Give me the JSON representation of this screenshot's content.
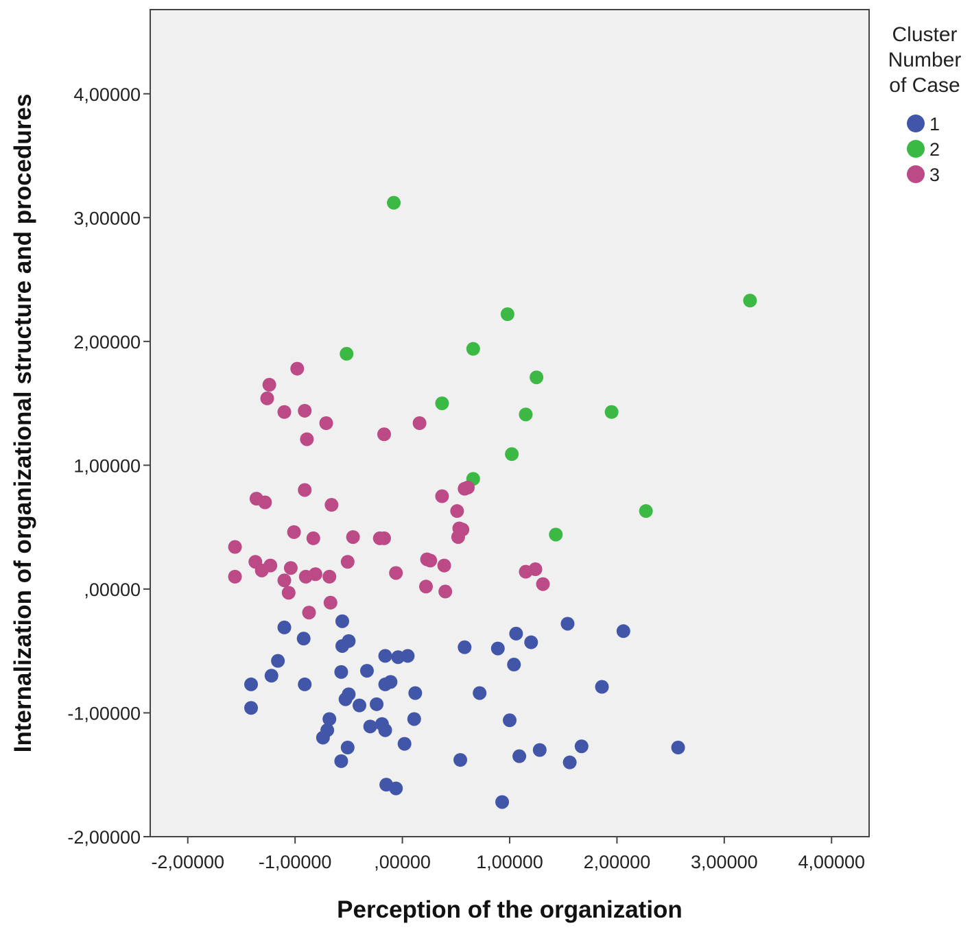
{
  "chart_data": {
    "type": "scatter",
    "xlabel": "Perception of the organization",
    "ylabel": "Internalization of organizational structure and procedures",
    "xlim": [
      -2.35,
      4.35
    ],
    "ylim": [
      -2.0,
      4.68
    ],
    "x_ticks": [
      -2,
      -1,
      0,
      1,
      2,
      3,
      4
    ],
    "y_ticks": [
      -2,
      -1,
      0,
      1,
      2,
      3,
      4
    ],
    "x_tick_labels": [
      "-2,00000",
      "-1,00000",
      ",00000",
      "1,00000",
      "2,00000",
      "3,00000",
      "4,00000"
    ],
    "y_tick_labels": [
      "-2,00000",
      "-1,00000",
      ",00000",
      "1,00000",
      "2,00000",
      "3,00000",
      "4,00000"
    ],
    "grid": false,
    "background_color": "#f0f0f0",
    "legend": {
      "title": "Cluster Number of Case",
      "title_lines": [
        "Cluster",
        "Number",
        "of Case"
      ],
      "placement": "right"
    },
    "series": [
      {
        "name": "1",
        "color": "#4156a8",
        "points": [
          [
            -1.41,
            -0.77
          ],
          [
            -1.41,
            -0.96
          ],
          [
            -1.22,
            -0.7
          ],
          [
            -1.16,
            -0.58
          ],
          [
            -1.1,
            -0.31
          ],
          [
            -0.92,
            -0.4
          ],
          [
            -0.91,
            -0.77
          ],
          [
            -0.74,
            -1.2
          ],
          [
            -0.7,
            -1.14
          ],
          [
            -0.68,
            -1.05
          ],
          [
            -0.57,
            -0.67
          ],
          [
            -0.56,
            -0.26
          ],
          [
            -0.56,
            -0.46
          ],
          [
            -0.57,
            -1.39
          ],
          [
            -0.53,
            -0.89
          ],
          [
            -0.51,
            -1.28
          ],
          [
            -0.5,
            -0.85
          ],
          [
            -0.5,
            -0.42
          ],
          [
            -0.4,
            -0.94
          ],
          [
            -0.33,
            -0.66
          ],
          [
            -0.3,
            -1.11
          ],
          [
            -0.24,
            -0.93
          ],
          [
            -0.19,
            -1.09
          ],
          [
            -0.16,
            -1.14
          ],
          [
            -0.16,
            -0.54
          ],
          [
            -0.16,
            -0.77
          ],
          [
            -0.15,
            -1.58
          ],
          [
            -0.11,
            -0.75
          ],
          [
            -0.06,
            -1.61
          ],
          [
            -0.04,
            -0.55
          ],
          [
            0.02,
            -1.25
          ],
          [
            0.05,
            -0.54
          ],
          [
            0.11,
            -1.05
          ],
          [
            0.12,
            -0.84
          ],
          [
            0.54,
            -1.38
          ],
          [
            0.58,
            -0.47
          ],
          [
            0.72,
            -0.84
          ],
          [
            0.89,
            -0.48
          ],
          [
            0.93,
            -1.72
          ],
          [
            1.0,
            -1.06
          ],
          [
            1.04,
            -0.61
          ],
          [
            1.06,
            -0.36
          ],
          [
            1.09,
            -1.35
          ],
          [
            1.2,
            -0.43
          ],
          [
            1.28,
            -1.3
          ],
          [
            1.54,
            -0.28
          ],
          [
            1.56,
            -1.4
          ],
          [
            1.67,
            -1.27
          ],
          [
            1.86,
            -0.79
          ],
          [
            2.06,
            -0.34
          ],
          [
            2.57,
            -1.28
          ]
        ]
      },
      {
        "name": "2",
        "color": "#3cb844",
        "points": [
          [
            -0.08,
            3.12
          ],
          [
            -0.52,
            1.9
          ],
          [
            0.37,
            1.5
          ],
          [
            0.66,
            1.94
          ],
          [
            0.66,
            0.89
          ],
          [
            0.98,
            2.22
          ],
          [
            1.02,
            1.09
          ],
          [
            1.15,
            1.41
          ],
          [
            1.25,
            1.71
          ],
          [
            1.43,
            0.44
          ],
          [
            1.95,
            1.43
          ],
          [
            2.27,
            0.63
          ],
          [
            3.24,
            2.33
          ]
        ]
      },
      {
        "name": "3",
        "color": "#bb4a86",
        "points": [
          [
            -1.56,
            0.34
          ],
          [
            -1.56,
            0.1
          ],
          [
            -1.37,
            0.22
          ],
          [
            -1.36,
            0.73
          ],
          [
            -1.31,
            0.15
          ],
          [
            -1.28,
            0.7
          ],
          [
            -1.26,
            1.54
          ],
          [
            -1.24,
            1.65
          ],
          [
            -1.23,
            0.19
          ],
          [
            -1.1,
            1.43
          ],
          [
            -1.1,
            0.07
          ],
          [
            -1.06,
            -0.03
          ],
          [
            -1.04,
            0.17
          ],
          [
            -1.01,
            0.46
          ],
          [
            -0.98,
            1.78
          ],
          [
            -0.91,
            1.44
          ],
          [
            -0.91,
            0.8
          ],
          [
            -0.89,
            1.21
          ],
          [
            -0.9,
            0.1
          ],
          [
            -0.87,
            -0.19
          ],
          [
            -0.83,
            0.41
          ],
          [
            -0.81,
            0.12
          ],
          [
            -0.71,
            1.34
          ],
          [
            -0.68,
            0.1
          ],
          [
            -0.67,
            -0.11
          ],
          [
            -0.66,
            0.68
          ],
          [
            -0.51,
            0.22
          ],
          [
            -0.46,
            0.42
          ],
          [
            -0.21,
            0.41
          ],
          [
            -0.17,
            1.25
          ],
          [
            -0.17,
            0.41
          ],
          [
            -0.06,
            0.13
          ],
          [
            0.16,
            1.34
          ],
          [
            0.22,
            0.02
          ],
          [
            0.23,
            0.24
          ],
          [
            0.26,
            0.23
          ],
          [
            0.37,
            0.75
          ],
          [
            0.39,
            0.19
          ],
          [
            0.4,
            -0.02
          ],
          [
            0.51,
            0.63
          ],
          [
            0.52,
            0.42
          ],
          [
            0.53,
            0.49
          ],
          [
            0.56,
            0.48
          ],
          [
            0.58,
            0.81
          ],
          [
            0.61,
            0.82
          ],
          [
            1.15,
            0.14
          ],
          [
            1.24,
            0.16
          ],
          [
            1.31,
            0.04
          ]
        ]
      }
    ]
  }
}
